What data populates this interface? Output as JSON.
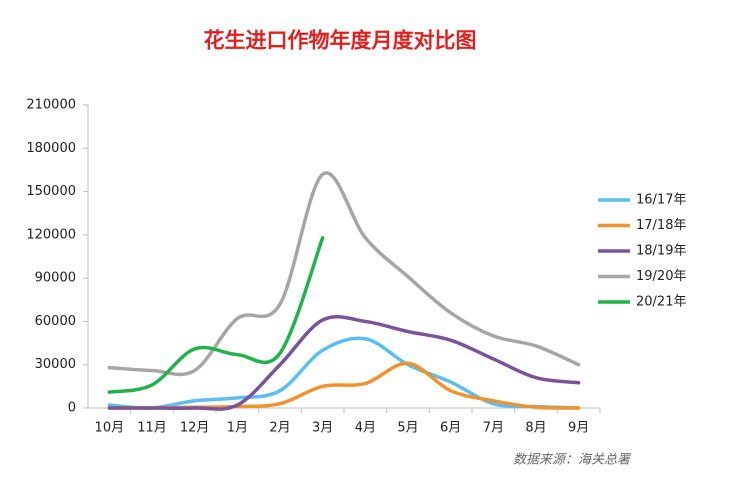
{
  "chart_data": {
    "type": "line",
    "title": "花生进口作物年度月度对比图",
    "source": "数据来源：海关总署",
    "categories": [
      "10月",
      "11月",
      "12月",
      "1月",
      "2月",
      "3月",
      "4月",
      "5月",
      "6月",
      "7月",
      "8月",
      "9月"
    ],
    "series": [
      {
        "name": "16/17年",
        "color": "#5bbdf0",
        "values": [
          2000,
          0,
          5000,
          7000,
          12000,
          40000,
          48000,
          30000,
          18000,
          3000,
          1000,
          0
        ]
      },
      {
        "name": "17/18年",
        "color": "#f0922e",
        "values": [
          0,
          0,
          500,
          1000,
          3000,
          15000,
          17000,
          31000,
          12000,
          5000,
          500,
          0
        ]
      },
      {
        "name": "18/19年",
        "color": "#7a539a",
        "values": [
          0,
          0,
          0,
          2000,
          30000,
          61000,
          60000,
          53000,
          47000,
          34000,
          21000,
          17500
        ]
      },
      {
        "name": "19/20年",
        "color": "#a6a6a6",
        "values": [
          28000,
          26000,
          26000,
          62000,
          72000,
          162000,
          118000,
          91000,
          66000,
          50000,
          43000,
          30000
        ]
      },
      {
        "name": "20/21年",
        "color": "#22b24c",
        "values": [
          11000,
          16000,
          41000,
          37000,
          38000,
          118000,
          null,
          null,
          null,
          null,
          null,
          null
        ]
      }
    ],
    "ylim": [
      0,
      210000
    ],
    "yticks": [
      0,
      30000,
      60000,
      90000,
      120000,
      150000,
      180000,
      210000
    ],
    "grid": false,
    "legend": "right"
  }
}
